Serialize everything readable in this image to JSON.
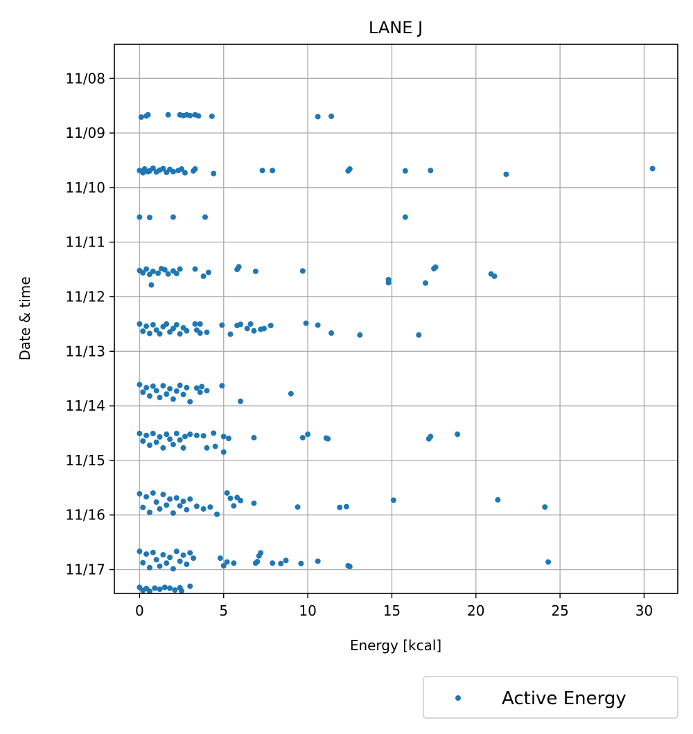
{
  "chart_data": {
    "type": "scatter",
    "title": "LANE J",
    "xlabel": "Energy [kcal]",
    "ylabel": "Date & time",
    "xlim": [
      -1.5,
      32
    ],
    "xticks": [
      0,
      5,
      10,
      15,
      20,
      25,
      30
    ],
    "ylim": [
      "11/07 09:00",
      "11/17 10:30"
    ],
    "yticks": [
      "11/08",
      "11/09",
      "11/10",
      "11/11",
      "11/12",
      "11/13",
      "11/14",
      "11/15",
      "11/16",
      "11/17"
    ],
    "y_axis_inverted": true,
    "grid": true,
    "legend_location": "below-right",
    "color": "#1f77b4",
    "series": [
      {
        "name": "Active Energy",
        "points": [
          [
            0.1,
            "11/08 17:00"
          ],
          [
            0.4,
            "11/08 16:30"
          ],
          [
            0.5,
            "11/08 16:00"
          ],
          [
            1.7,
            "11/08 16:00"
          ],
          [
            2.4,
            "11/08 16:00"
          ],
          [
            2.6,
            "11/08 16:20"
          ],
          [
            2.8,
            "11/08 16:00"
          ],
          [
            3.0,
            "11/08 16:20"
          ],
          [
            3.3,
            "11/08 16:00"
          ],
          [
            3.5,
            "11/08 16:30"
          ],
          [
            4.3,
            "11/08 16:40"
          ],
          [
            10.6,
            "11/08 16:50"
          ],
          [
            11.4,
            "11/08 16:40"
          ],
          [
            0.0,
            "11/09 16:30"
          ],
          [
            0.2,
            "11/09 17:30"
          ],
          [
            0.3,
            "11/09 15:50"
          ],
          [
            0.5,
            "11/09 17:00"
          ],
          [
            0.6,
            "11/09 16:40"
          ],
          [
            0.8,
            "11/09 15:30"
          ],
          [
            1.0,
            "11/09 17:10"
          ],
          [
            1.2,
            "11/09 16:20"
          ],
          [
            1.4,
            "11/09 15:40"
          ],
          [
            1.6,
            "11/09 17:20"
          ],
          [
            1.8,
            "11/09 16:00"
          ],
          [
            2.0,
            "11/09 17:00"
          ],
          [
            2.3,
            "11/09 16:30"
          ],
          [
            2.5,
            "11/09 15:50"
          ],
          [
            2.7,
            "11/09 17:30"
          ],
          [
            3.2,
            "11/09 16:40"
          ],
          [
            3.3,
            "11/09 15:50"
          ],
          [
            4.4,
            "11/09 17:50"
          ],
          [
            7.3,
            "11/09 16:30"
          ],
          [
            7.9,
            "11/09 16:30"
          ],
          [
            12.4,
            "11/09 16:40"
          ],
          [
            12.5,
            "11/09 15:50"
          ],
          [
            15.8,
            "11/09 16:40"
          ],
          [
            17.3,
            "11/09 16:30"
          ],
          [
            21.8,
            "11/09 18:10"
          ],
          [
            30.5,
            "11/09 15:40"
          ],
          [
            0.0,
            "11/10 13:00"
          ],
          [
            0.6,
            "11/10 13:10"
          ],
          [
            2.0,
            "11/10 13:00"
          ],
          [
            3.9,
            "11/10 13:00"
          ],
          [
            15.8,
            "11/10 13:00"
          ],
          [
            0.0,
            "11/11 12:30"
          ],
          [
            0.2,
            "11/11 13:30"
          ],
          [
            0.4,
            "11/11 11:50"
          ],
          [
            0.6,
            "11/11 14:10"
          ],
          [
            0.8,
            "11/11 12:50"
          ],
          [
            1.1,
            "11/11 13:40"
          ],
          [
            1.3,
            "11/11 11:40"
          ],
          [
            1.5,
            "11/11 12:10"
          ],
          [
            1.7,
            "11/11 14:00"
          ],
          [
            2.0,
            "11/11 12:40"
          ],
          [
            2.2,
            "11/11 13:50"
          ],
          [
            2.4,
            "11/11 11:50"
          ],
          [
            0.7,
            "11/11 18:50"
          ],
          [
            3.3,
            "11/11 11:50"
          ],
          [
            3.8,
            "11/11 15:00"
          ],
          [
            4.1,
            "11/11 13:20"
          ],
          [
            5.8,
            "11/11 12:00"
          ],
          [
            5.9,
            "11/11 10:50"
          ],
          [
            6.9,
            "11/11 12:50"
          ],
          [
            9.7,
            "11/11 12:40"
          ],
          [
            14.8,
            "11/11 16:30"
          ],
          [
            14.8,
            "11/11 17:50"
          ],
          [
            17.0,
            "11/11 18:00"
          ],
          [
            17.5,
            "11/11 11:40"
          ],
          [
            17.6,
            "11/11 11:00"
          ],
          [
            20.9,
            "11/11 14:00"
          ],
          [
            21.1,
            "11/11 15:00"
          ],
          [
            0.0,
            "11/12 12:00"
          ],
          [
            0.2,
            "11/12 15:10"
          ],
          [
            0.4,
            "11/12 13:00"
          ],
          [
            0.6,
            "11/12 16:10"
          ],
          [
            0.8,
            "11/12 12:20"
          ],
          [
            1.0,
            "11/12 14:40"
          ],
          [
            1.2,
            "11/12 16:20"
          ],
          [
            1.4,
            "11/12 13:10"
          ],
          [
            1.6,
            "11/12 12:00"
          ],
          [
            1.8,
            "11/12 15:30"
          ],
          [
            2.0,
            "11/12 14:00"
          ],
          [
            2.2,
            "11/12 12:20"
          ],
          [
            2.4,
            "11/12 16:20"
          ],
          [
            2.6,
            "11/12 13:40"
          ],
          [
            2.8,
            "11/12 15:00"
          ],
          [
            3.3,
            "11/12 12:00"
          ],
          [
            3.4,
            "11/12 14:40"
          ],
          [
            3.6,
            "11/12 12:00"
          ],
          [
            3.6,
            "11/12 16:00"
          ],
          [
            4.0,
            "11/12 15:40"
          ],
          [
            4.9,
            "11/12 12:30"
          ],
          [
            5.4,
            "11/12 16:30"
          ],
          [
            5.8,
            "11/12 12:40"
          ],
          [
            6.0,
            "11/12 12:10"
          ],
          [
            6.4,
            "11/12 14:00"
          ],
          [
            6.6,
            "11/12 12:00"
          ],
          [
            6.8,
            "11/12 15:00"
          ],
          [
            7.2,
            "11/12 14:20"
          ],
          [
            7.4,
            "11/12 14:00"
          ],
          [
            7.8,
            "11/12 12:40"
          ],
          [
            9.9,
            "11/12 11:40"
          ],
          [
            10.6,
            "11/12 12:30"
          ],
          [
            11.4,
            "11/12 16:00"
          ],
          [
            13.1,
            "11/12 16:50"
          ],
          [
            16.6,
            "11/12 16:50"
          ],
          [
            0.0,
            "11/13 14:40"
          ],
          [
            0.2,
            "11/13 18:00"
          ],
          [
            0.4,
            "11/13 16:00"
          ],
          [
            0.6,
            "11/13 19:40"
          ],
          [
            0.8,
            "11/13 15:20"
          ],
          [
            1.0,
            "11/13 17:20"
          ],
          [
            1.2,
            "11/13 20:20"
          ],
          [
            1.4,
            "11/13 15:10"
          ],
          [
            1.6,
            "11/13 18:50"
          ],
          [
            1.8,
            "11/13 16:30"
          ],
          [
            2.0,
            "11/13 21:00"
          ],
          [
            2.2,
            "11/13 17:30"
          ],
          [
            2.4,
            "11/13 15:00"
          ],
          [
            2.6,
            "11/13 19:00"
          ],
          [
            2.8,
            "11/13 16:00"
          ],
          [
            3.0,
            "11/13 22:10"
          ],
          [
            3.4,
            "11/13 16:10"
          ],
          [
            3.6,
            "11/13 18:00"
          ],
          [
            3.7,
            "11/13 15:30"
          ],
          [
            4.0,
            "11/13 17:20"
          ],
          [
            4.9,
            "11/13 15:10"
          ],
          [
            9.0,
            "11/13 18:40"
          ],
          [
            6.0,
            "11/13 22:00"
          ],
          [
            0.0,
            "11/14 12:10"
          ],
          [
            0.2,
            "11/14 15:30"
          ],
          [
            0.4,
            "11/14 13:00"
          ],
          [
            0.6,
            "11/14 17:20"
          ],
          [
            0.8,
            "11/14 12:10"
          ],
          [
            1.0,
            "11/14 16:00"
          ],
          [
            1.2,
            "11/14 13:40"
          ],
          [
            1.4,
            "11/14 18:30"
          ],
          [
            1.6,
            "11/14 12:30"
          ],
          [
            1.8,
            "11/14 14:40"
          ],
          [
            2.0,
            "11/14 17:00"
          ],
          [
            2.2,
            "11/14 12:10"
          ],
          [
            2.4,
            "11/14 15:00"
          ],
          [
            2.6,
            "11/14 18:30"
          ],
          [
            2.7,
            "11/14 13:30"
          ],
          [
            3.0,
            "11/14 12:30"
          ],
          [
            3.4,
            "11/14 13:00"
          ],
          [
            3.8,
            "11/14 13:10"
          ],
          [
            4.0,
            "11/14 18:30"
          ],
          [
            4.4,
            "11/14 12:00"
          ],
          [
            4.5,
            "11/14 17:50"
          ],
          [
            5.0,
            "11/14 13:30"
          ],
          [
            5.0,
            "11/14 20:20"
          ],
          [
            5.3,
            "11/14 14:20"
          ],
          [
            6.8,
            "11/14 14:00"
          ],
          [
            9.7,
            "11/14 14:00"
          ],
          [
            10.0,
            "11/14 12:30"
          ],
          [
            11.1,
            "11/14 14:10"
          ],
          [
            11.2,
            "11/14 14:30"
          ],
          [
            17.2,
            "11/14 14:30"
          ],
          [
            17.3,
            "11/14 13:30"
          ],
          [
            18.9,
            "11/14 12:30"
          ],
          [
            0.0,
            "11/15 14:40"
          ],
          [
            0.2,
            "11/15 20:40"
          ],
          [
            0.4,
            "11/15 16:00"
          ],
          [
            0.6,
            "11/15 22:50"
          ],
          [
            0.8,
            "11/15 14:20"
          ],
          [
            1.0,
            "11/15 18:20"
          ],
          [
            1.2,
            "11/15 21:20"
          ],
          [
            1.4,
            "11/15 15:00"
          ],
          [
            1.6,
            "11/15 19:40"
          ],
          [
            1.8,
            "11/15 17:00"
          ],
          [
            2.0,
            "11/15 23:10"
          ],
          [
            2.2,
            "11/15 16:30"
          ],
          [
            2.4,
            "11/15 20:00"
          ],
          [
            2.6,
            "11/15 18:00"
          ],
          [
            2.8,
            "11/15 21:40"
          ],
          [
            3.0,
            "11/15 17:00"
          ],
          [
            3.4,
            "11/15 20:10"
          ],
          [
            3.8,
            "11/15 21:20"
          ],
          [
            4.2,
            "11/15 20:30"
          ],
          [
            4.6,
            "11/15 23:40"
          ],
          [
            5.2,
            "11/15 14:20"
          ],
          [
            5.4,
            "11/15 16:40"
          ],
          [
            5.6,
            "11/15 20:00"
          ],
          [
            5.8,
            "11/15 16:20"
          ],
          [
            6.0,
            "11/15 17:40"
          ],
          [
            6.8,
            "11/15 18:50"
          ],
          [
            9.4,
            "11/15 20:30"
          ],
          [
            11.9,
            "11/15 20:40"
          ],
          [
            12.3,
            "11/15 20:20"
          ],
          [
            15.1,
            "11/15 17:30"
          ],
          [
            21.3,
            "11/15 17:20"
          ],
          [
            24.1,
            "11/15 20:30"
          ],
          [
            0.0,
            "11/16 16:00"
          ],
          [
            0.2,
            "11/16 21:00"
          ],
          [
            0.4,
            "11/16 17:10"
          ],
          [
            0.6,
            "11/16 23:10"
          ],
          [
            0.8,
            "11/16 16:30"
          ],
          [
            1.0,
            "11/16 19:40"
          ],
          [
            1.2,
            "11/16 22:30"
          ],
          [
            1.4,
            "11/16 17:30"
          ],
          [
            1.6,
            "11/16 21:10"
          ],
          [
            1.8,
            "11/16 18:40"
          ],
          [
            2.0,
            "11/16 23:40"
          ],
          [
            2.2,
            "11/16 16:00"
          ],
          [
            2.4,
            "11/16 20:20"
          ],
          [
            2.6,
            "11/16 17:40"
          ],
          [
            2.8,
            "11/16 21:40"
          ],
          [
            3.0,
            "11/16 16:40"
          ],
          [
            3.2,
            "11/16 19:00"
          ],
          [
            4.8,
            "11/16 19:00"
          ],
          [
            5.0,
            "11/16 22:20"
          ],
          [
            5.2,
            "11/16 20:40"
          ],
          [
            5.6,
            "11/16 21:10"
          ],
          [
            6.9,
            "11/16 21:10"
          ],
          [
            7.0,
            "11/16 20:30"
          ],
          [
            7.1,
            "11/16 18:00"
          ],
          [
            7.2,
            "11/16 16:40"
          ],
          [
            7.9,
            "11/16 21:10"
          ],
          [
            8.4,
            "11/16 21:20"
          ],
          [
            8.7,
            "11/16 20:00"
          ],
          [
            9.6,
            "11/16 21:20"
          ],
          [
            10.6,
            "11/16 20:20"
          ],
          [
            12.4,
            "11/16 22:20"
          ],
          [
            12.5,
            "11/16 22:40"
          ],
          [
            24.3,
            "11/16 20:40"
          ],
          [
            0.0,
            "11/17 07:50"
          ],
          [
            0.2,
            "11/17 09:10"
          ],
          [
            0.4,
            "11/17 08:20"
          ],
          [
            0.6,
            "11/17 09:30"
          ],
          [
            0.9,
            "11/17 08:10"
          ],
          [
            1.2,
            "11/17 08:40"
          ],
          [
            1.5,
            "11/17 07:50"
          ],
          [
            1.8,
            "11/17 08:10"
          ],
          [
            2.1,
            "11/17 09:00"
          ],
          [
            2.4,
            "11/17 08:00"
          ],
          [
            2.5,
            "11/17 09:20"
          ],
          [
            3.0,
            "11/17 07:20"
          ]
        ]
      }
    ],
    "legend": {
      "entries": [
        "Active Energy"
      ]
    }
  }
}
